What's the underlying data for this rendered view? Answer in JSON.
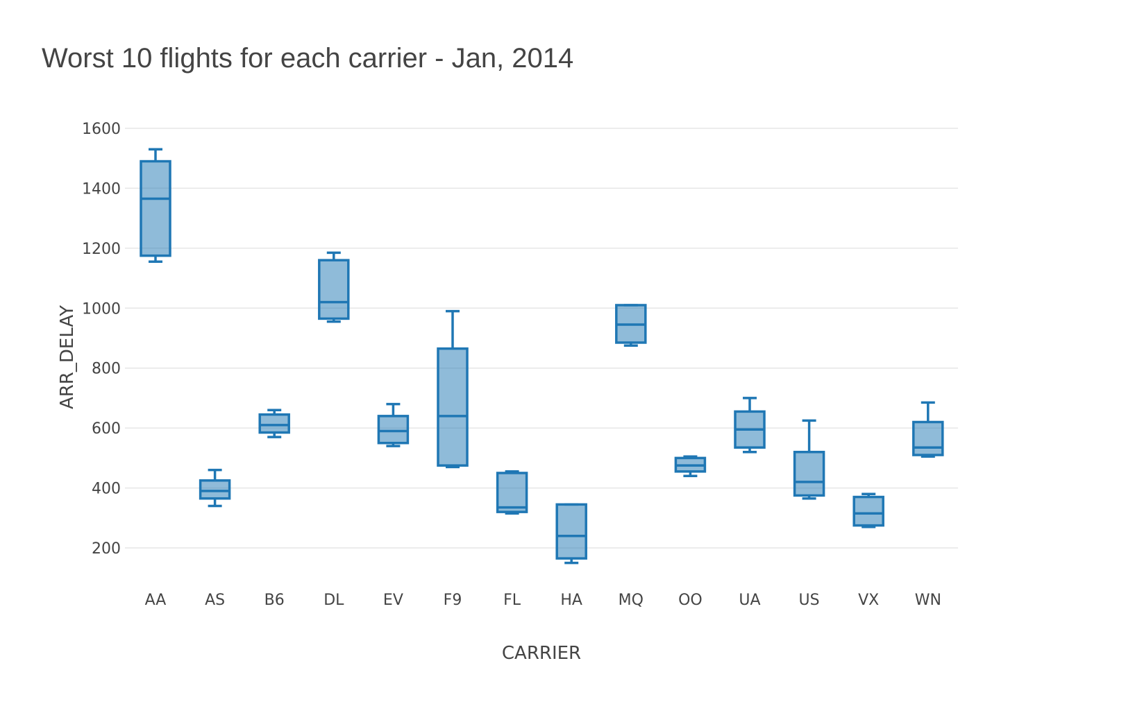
{
  "chart_data": {
    "type": "box",
    "title": "Worst 10 flights for each carrier - Jan, 2014",
    "xlabel": "CARRIER",
    "ylabel": "ARR_DELAY",
    "ylim": [
      80,
      1650
    ],
    "yticks": [
      200,
      400,
      600,
      800,
      1000,
      1200,
      1400,
      1600
    ],
    "grid": true,
    "color": "#1f77b4",
    "categories": [
      "AA",
      "AS",
      "B6",
      "DL",
      "EV",
      "F9",
      "FL",
      "HA",
      "MQ",
      "OO",
      "UA",
      "US",
      "VX",
      "WN"
    ],
    "boxes": [
      {
        "category": "AA",
        "min": 1155,
        "q1": 1175,
        "median": 1365,
        "q3": 1490,
        "max": 1530
      },
      {
        "category": "AS",
        "min": 340,
        "q1": 365,
        "median": 390,
        "q3": 425,
        "max": 460
      },
      {
        "category": "B6",
        "min": 570,
        "q1": 585,
        "median": 610,
        "q3": 645,
        "max": 660
      },
      {
        "category": "DL",
        "min": 955,
        "q1": 965,
        "median": 1020,
        "q3": 1160,
        "max": 1185
      },
      {
        "category": "EV",
        "min": 540,
        "q1": 550,
        "median": 590,
        "q3": 640,
        "max": 680
      },
      {
        "category": "F9",
        "min": 470,
        "q1": 475,
        "median": 640,
        "q3": 865,
        "max": 990
      },
      {
        "category": "FL",
        "min": 315,
        "q1": 320,
        "median": 335,
        "q3": 450,
        "max": 455
      },
      {
        "category": "HA",
        "min": 150,
        "q1": 165,
        "median": 240,
        "q3": 345,
        "max": 345
      },
      {
        "category": "MQ",
        "min": 875,
        "q1": 885,
        "median": 945,
        "q3": 1010,
        "max": 1010
      },
      {
        "category": "OO",
        "min": 440,
        "q1": 455,
        "median": 475,
        "q3": 500,
        "max": 505
      },
      {
        "category": "UA",
        "min": 520,
        "q1": 535,
        "median": 595,
        "q3": 655,
        "max": 700
      },
      {
        "category": "US",
        "min": 365,
        "q1": 375,
        "median": 420,
        "q3": 520,
        "max": 625
      },
      {
        "category": "VX",
        "min": 270,
        "q1": 275,
        "median": 315,
        "q3": 370,
        "max": 380
      },
      {
        "category": "WN",
        "min": 505,
        "q1": 510,
        "median": 535,
        "q3": 620,
        "max": 685
      }
    ]
  }
}
